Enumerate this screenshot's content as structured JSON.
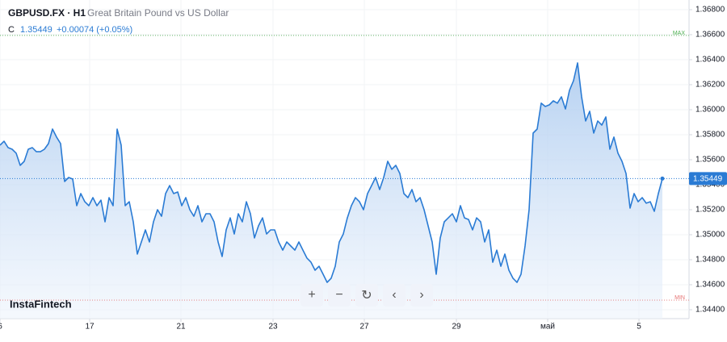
{
  "chart_data": {
    "type": "area",
    "symbol": "GBPUSD.FX · H1",
    "description": "Great Britain Pound vs US Dollar",
    "close_label": "C",
    "last_price": 1.35449,
    "change": "+0.00074 (+0.05%)",
    "watermark": "InstaFintech",
    "color": "#2a7bd4",
    "max_line": {
      "value": 1.36594,
      "label": "MAX"
    },
    "min_line": {
      "value": 1.34477,
      "label": "MIN"
    },
    "xlim": [
      0,
      170.6
    ],
    "xticks": [
      {
        "value": 0,
        "label": "6"
      },
      {
        "value": 22.2,
        "label": "17"
      },
      {
        "value": 44.8,
        "label": "21"
      },
      {
        "value": 67.6,
        "label": "23"
      },
      {
        "value": 90.2,
        "label": "27"
      },
      {
        "value": 113,
        "label": "29"
      },
      {
        "value": 135.6,
        "label": "май"
      },
      {
        "value": 158.2,
        "label": "5"
      }
    ],
    "ylim": [
      1.344,
      1.368
    ],
    "yticks": [
      {
        "value": 1.344,
        "label": "1.34400"
      },
      {
        "value": 1.346,
        "label": "1.34600"
      },
      {
        "value": 1.348,
        "label": "1.34800"
      },
      {
        "value": 1.35,
        "label": "1.35000"
      },
      {
        "value": 1.352,
        "label": "1.35200"
      },
      {
        "value": 1.354,
        "label": "1.35400"
      },
      {
        "value": 1.356,
        "label": "1.35600"
      },
      {
        "value": 1.358,
        "label": "1.35800"
      },
      {
        "value": 1.36,
        "label": "1.36000"
      },
      {
        "value": 1.362,
        "label": "1.36200"
      },
      {
        "value": 1.364,
        "label": "1.36400"
      },
      {
        "value": 1.366,
        "label": "1.36600"
      },
      {
        "value": 1.368,
        "label": "1.36800"
      }
    ],
    "grid": true,
    "x": [
      0,
      1,
      2,
      3,
      4,
      5,
      6,
      7,
      8,
      9,
      10,
      11,
      12,
      13,
      14,
      15,
      16,
      17,
      18,
      19,
      20,
      21,
      22,
      23,
      24,
      25,
      26,
      27,
      28,
      29,
      30,
      31,
      32,
      33,
      34,
      35,
      36,
      37,
      38,
      39,
      40,
      41,
      42,
      43,
      44,
      45,
      46,
      47,
      48,
      49,
      50,
      51,
      52,
      53,
      54,
      55,
      56,
      57,
      58,
      59,
      60,
      61,
      62,
      63,
      64,
      65,
      66,
      67,
      68,
      69,
      70,
      71,
      72,
      73,
      74,
      75,
      76,
      77,
      78,
      79,
      80,
      81,
      82,
      83,
      84,
      85,
      86,
      87,
      88,
      89,
      90,
      91,
      92,
      93,
      94,
      95,
      96,
      97,
      98,
      99,
      100,
      101,
      102,
      103,
      104,
      105,
      106,
      107,
      108,
      109,
      110,
      111,
      112,
      113,
      114,
      115,
      116,
      117,
      118,
      119,
      120,
      121,
      122,
      123,
      124,
      125,
      126,
      127,
      128,
      129,
      130,
      131,
      132,
      133,
      134,
      135,
      136,
      137,
      138,
      139,
      140,
      141,
      142,
      143,
      144,
      145,
      146,
      147,
      148,
      149,
      150,
      151,
      152,
      153,
      154,
      155,
      156,
      157,
      158,
      159,
      160,
      161,
      162,
      163,
      164
    ],
    "values": [
      1.35716,
      1.35748,
      1.35697,
      1.35684,
      1.35652,
      1.35555,
      1.35587,
      1.35684,
      1.35697,
      1.35664,
      1.35664,
      1.35684,
      1.35729,
      1.35845,
      1.35781,
      1.35729,
      1.35426,
      1.35458,
      1.35445,
      1.35232,
      1.35329,
      1.35264,
      1.35232,
      1.35297,
      1.35232,
      1.35277,
      1.35103,
      1.35297,
      1.35232,
      1.35845,
      1.35716,
      1.35232,
      1.35264,
      1.35103,
      1.34845,
      1.34942,
      1.35039,
      1.34942,
      1.35103,
      1.352,
      1.35148,
      1.35329,
      1.35393,
      1.35329,
      1.35342,
      1.35232,
      1.35297,
      1.352,
      1.35148,
      1.35232,
      1.35103,
      1.35168,
      1.35168,
      1.35103,
      1.34942,
      1.34826,
      1.35039,
      1.35135,
      1.35006,
      1.35168,
      1.35103,
      1.35264,
      1.35168,
      1.34974,
      1.35071,
      1.35135,
      1.35006,
      1.35039,
      1.35039,
      1.34942,
      1.34877,
      1.34942,
      1.3491,
      1.34877,
      1.34942,
      1.34877,
      1.34813,
      1.3478,
      1.34716,
      1.34748,
      1.34684,
      1.34619,
      1.34652,
      1.34748,
      1.34942,
      1.35006,
      1.35135,
      1.35232,
      1.35297,
      1.35264,
      1.352,
      1.35329,
      1.35393,
      1.35458,
      1.35361,
      1.35458,
      1.35587,
      1.35523,
      1.35555,
      1.3549,
      1.35329,
      1.35297,
      1.35361,
      1.35264,
      1.35297,
      1.352,
      1.35071,
      1.34942,
      1.34684,
      1.34974,
      1.35103,
      1.35135,
      1.35168,
      1.35103,
      1.35232,
      1.35135,
      1.35122,
      1.35039,
      1.35135,
      1.35103,
      1.34942,
      1.35039,
      1.3478,
      1.34877,
      1.34748,
      1.34845,
      1.34716,
      1.34652,
      1.34619,
      1.34684,
      1.3491,
      1.352,
      1.35813,
      1.35845,
      1.36052,
      1.36026,
      1.36039,
      1.36071,
      1.36052,
      1.36103,
      1.36006,
      1.36155,
      1.36232,
      1.36374,
      1.36103,
      1.3591,
      1.35987,
      1.35813,
      1.3591,
      1.35877,
      1.35942,
      1.35684,
      1.35781,
      1.35652,
      1.35587,
      1.3549,
      1.35213,
      1.35329,
      1.35264,
      1.35297,
      1.35252,
      1.35264,
      1.35187,
      1.35329,
      1.35449
    ]
  }
}
